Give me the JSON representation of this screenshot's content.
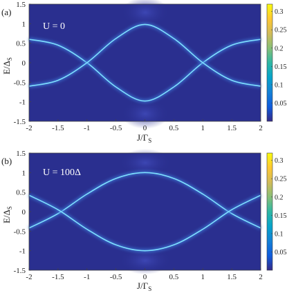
{
  "chart_data": [
    {
      "type": "heatmap",
      "panel_label": "(a)",
      "annotation": "U = 0",
      "xlabel": "J/Γ",
      "xlabel_sub": "S",
      "ylabel": "E/Δ",
      "ylabel_sub": "S",
      "xlim": [
        -2,
        2
      ],
      "ylim": [
        -1.5,
        1.5
      ],
      "xticks": [
        "-2",
        "-1.5",
        "-1",
        "-0.5",
        "0",
        "0.5",
        "1",
        "1.5",
        "2"
      ],
      "yticks": [
        "1.5",
        "1",
        "0.5",
        "0",
        "-0.5",
        "-1",
        "-1.5"
      ],
      "colorbar": {
        "ticks": [
          "0.3",
          "0.25",
          "0.2",
          "0.15",
          "0.1",
          "0.05"
        ],
        "range": [
          0,
          0.32
        ]
      },
      "series": [
        {
          "values": [
            {
              "x": -2,
              "y": 0.6
            },
            {
              "x": -1.5,
              "y": 0.45
            },
            {
              "x": -1,
              "y": 0
            },
            {
              "x": -0.5,
              "y": -0.62
            },
            {
              "x": 0,
              "y": -0.98
            },
            {
              "x": 0.5,
              "y": -0.62
            },
            {
              "x": 1,
              "y": 0
            },
            {
              "x": 1.5,
              "y": 0.45
            },
            {
              "x": 2,
              "y": 0.6
            }
          ]
        },
        {
          "values": [
            {
              "x": -2,
              "y": -0.6
            },
            {
              "x": -1.5,
              "y": -0.45
            },
            {
              "x": -1,
              "y": 0
            },
            {
              "x": -0.5,
              "y": 0.62
            },
            {
              "x": 0,
              "y": 0.98
            },
            {
              "x": 0.5,
              "y": 0.62
            },
            {
              "x": 1,
              "y": 0
            },
            {
              "x": 1.5,
              "y": -0.45
            },
            {
              "x": 2,
              "y": -0.6
            }
          ]
        }
      ]
    },
    {
      "type": "heatmap",
      "panel_label": "(b)",
      "annotation": "U = 100Δ",
      "xlabel": "J/Γ",
      "xlabel_sub": "S",
      "ylabel": "E/Δ",
      "ylabel_sub": "S",
      "xlim": [
        -2,
        2
      ],
      "ylim": [
        -1.5,
        1.5
      ],
      "xticks": [
        "-2",
        "-1.5",
        "-1",
        "-0.5",
        "0",
        "0.5",
        "1",
        "1.5",
        "2"
      ],
      "yticks": [
        "1.5",
        "1",
        "0.5",
        "0",
        "-0.5",
        "-1",
        "-1.5"
      ],
      "colorbar": {
        "ticks": [
          "0.3",
          "0.25",
          "0.2",
          "0.15",
          "0.1",
          "0.05"
        ],
        "range": [
          0,
          0.32
        ]
      },
      "series": [
        {
          "values": [
            {
              "x": -2,
              "y": -0.42
            },
            {
              "x": -1.5,
              "y": -0.05
            },
            {
              "x": -1,
              "y": 0.45
            },
            {
              "x": -0.5,
              "y": 0.85
            },
            {
              "x": 0,
              "y": 1.0
            },
            {
              "x": 0.5,
              "y": 0.85
            },
            {
              "x": 1,
              "y": 0.45
            },
            {
              "x": 1.5,
              "y": -0.05
            },
            {
              "x": 2,
              "y": -0.42
            }
          ]
        },
        {
          "values": [
            {
              "x": -2,
              "y": 0.42
            },
            {
              "x": -1.5,
              "y": 0.05
            },
            {
              "x": -1,
              "y": -0.45
            },
            {
              "x": -0.5,
              "y": -0.85
            },
            {
              "x": 0,
              "y": -1.0
            },
            {
              "x": 0.5,
              "y": -0.85
            },
            {
              "x": 1,
              "y": -0.45
            },
            {
              "x": 1.5,
              "y": 0.05
            },
            {
              "x": 2,
              "y": 0.42
            }
          ]
        }
      ]
    }
  ],
  "colors": {
    "background": "#2a2f8f",
    "line_core": "#7fe0ff",
    "line_glow": "#3d7ad8",
    "colorbar_stops": [
      "#352a87",
      "#0f5cdd",
      "#1481d6",
      "#06a4ca",
      "#2eb7a4",
      "#87bf77",
      "#d1bb59",
      "#fec832",
      "#f9fb0e"
    ]
  }
}
